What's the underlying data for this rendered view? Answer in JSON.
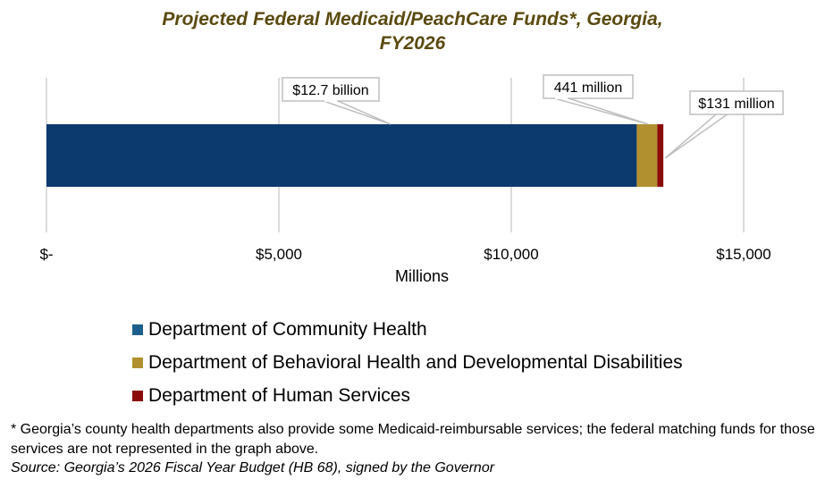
{
  "chart_data": {
    "type": "bar",
    "orientation": "horizontal",
    "stacked": true,
    "title_lines": [
      "Projected Federal Medicaid/PeachCare Funds*, Georgia,",
      "FY2026"
    ],
    "xlabel": "Millions",
    "xlim": [
      0,
      15000
    ],
    "xticks": [
      {
        "value": 0,
        "label": "$-"
      },
      {
        "value": 5000,
        "label": "$5,000"
      },
      {
        "value": 10000,
        "label": "$10,000"
      },
      {
        "value": 15000,
        "label": "$15,000"
      }
    ],
    "grid": true,
    "legend_position": "bottom",
    "series": [
      {
        "name": "Department of Community Health",
        "value": 12700,
        "color": "#0d3a6e",
        "label": "$12.7 billion"
      },
      {
        "name": "Department of Behavioral Health and Developmental Disabilities",
        "value": 441,
        "color": "#b0902f",
        "label": "441 million"
      },
      {
        "name": "Department of Human Services",
        "value": 131,
        "color": "#8b0b0b",
        "label": "$131 million"
      }
    ]
  },
  "colors": {
    "title": "#5a4a10",
    "legend_swatch_community_health": "#1c5e8c",
    "legend_swatch_behavioral_health": "#b0902f",
    "legend_swatch_human_services": "#8b0b0b"
  },
  "footnote": "* Georgia’s county health departments also provide some Medicaid-reimbursable services; the federal matching funds for those services are not represented in the graph above.",
  "source": "Source: Georgia’s 2026 Fiscal Year Budget (HB 68), signed by the Governor"
}
